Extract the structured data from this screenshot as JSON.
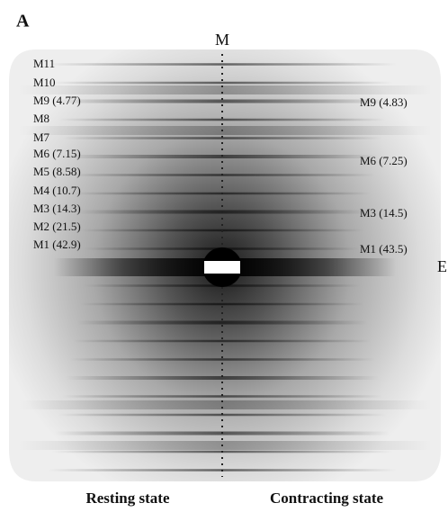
{
  "panel_label": "A",
  "meridian_label": "M",
  "equator_label": "E",
  "left_labels": [
    "M11",
    "M10",
    "M9 (4.77)",
    "M8",
    "M7",
    "M6 (7.15)",
    "M5 (8.58)",
    "M4 (10.7)",
    "M3 (14.3)",
    "M2 (21.5)",
    "M1 (42.9)"
  ],
  "right_labels": [
    "M9 (4.83)",
    "M6 (7.25)",
    "M3 (14.5)",
    "M1 (43.5)"
  ],
  "captions": [
    "Resting state",
    "Contracting state"
  ]
}
